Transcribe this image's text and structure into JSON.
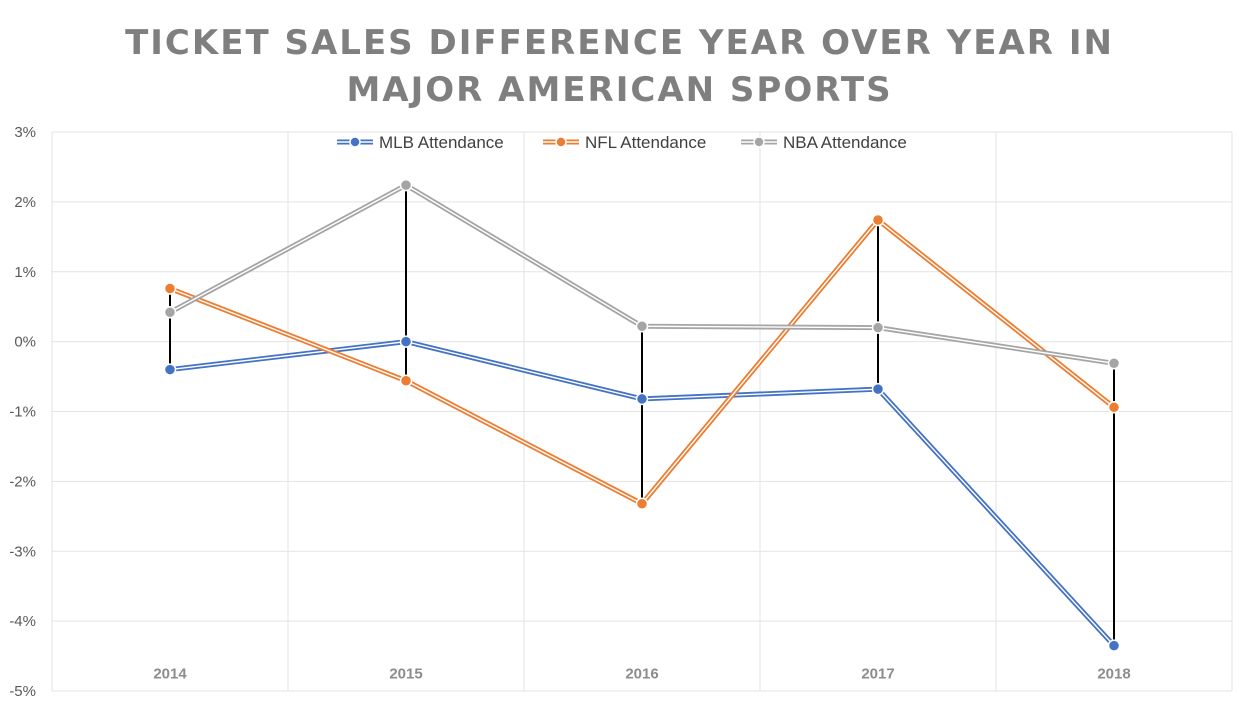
{
  "chart_data": {
    "type": "line",
    "title_lines": [
      "TICKET SALES DIFFERENCE YEAR OVER YEAR IN",
      "MAJOR AMERICAN SPORTS"
    ],
    "categories": [
      "2014",
      "2015",
      "2016",
      "2017",
      "2018"
    ],
    "series": [
      {
        "name": "MLB Attendance",
        "color": "#4472c4",
        "values": [
          -0.4,
          0.0,
          -0.82,
          -0.68,
          -4.35
        ]
      },
      {
        "name": "NFL Attendance",
        "color": "#ed7d31",
        "values": [
          0.76,
          -0.56,
          -2.32,
          1.74,
          -0.94
        ]
      },
      {
        "name": "NBA Attendance",
        "color": "#a5a5a5",
        "values": [
          0.42,
          2.24,
          0.22,
          0.2,
          -0.31
        ]
      }
    ],
    "y_ticks": [
      3,
      2,
      1,
      0,
      -1,
      -2,
      -3,
      -4,
      -5
    ],
    "y_tick_labels": [
      "3%",
      "2%",
      "1%",
      "0%",
      "-1%",
      "-2%",
      "-3%",
      "-4%",
      "-5%"
    ],
    "ylim": [
      -5,
      3
    ],
    "high_low_lines": true,
    "legend_position": "top",
    "xlabel": "",
    "ylabel": ""
  }
}
